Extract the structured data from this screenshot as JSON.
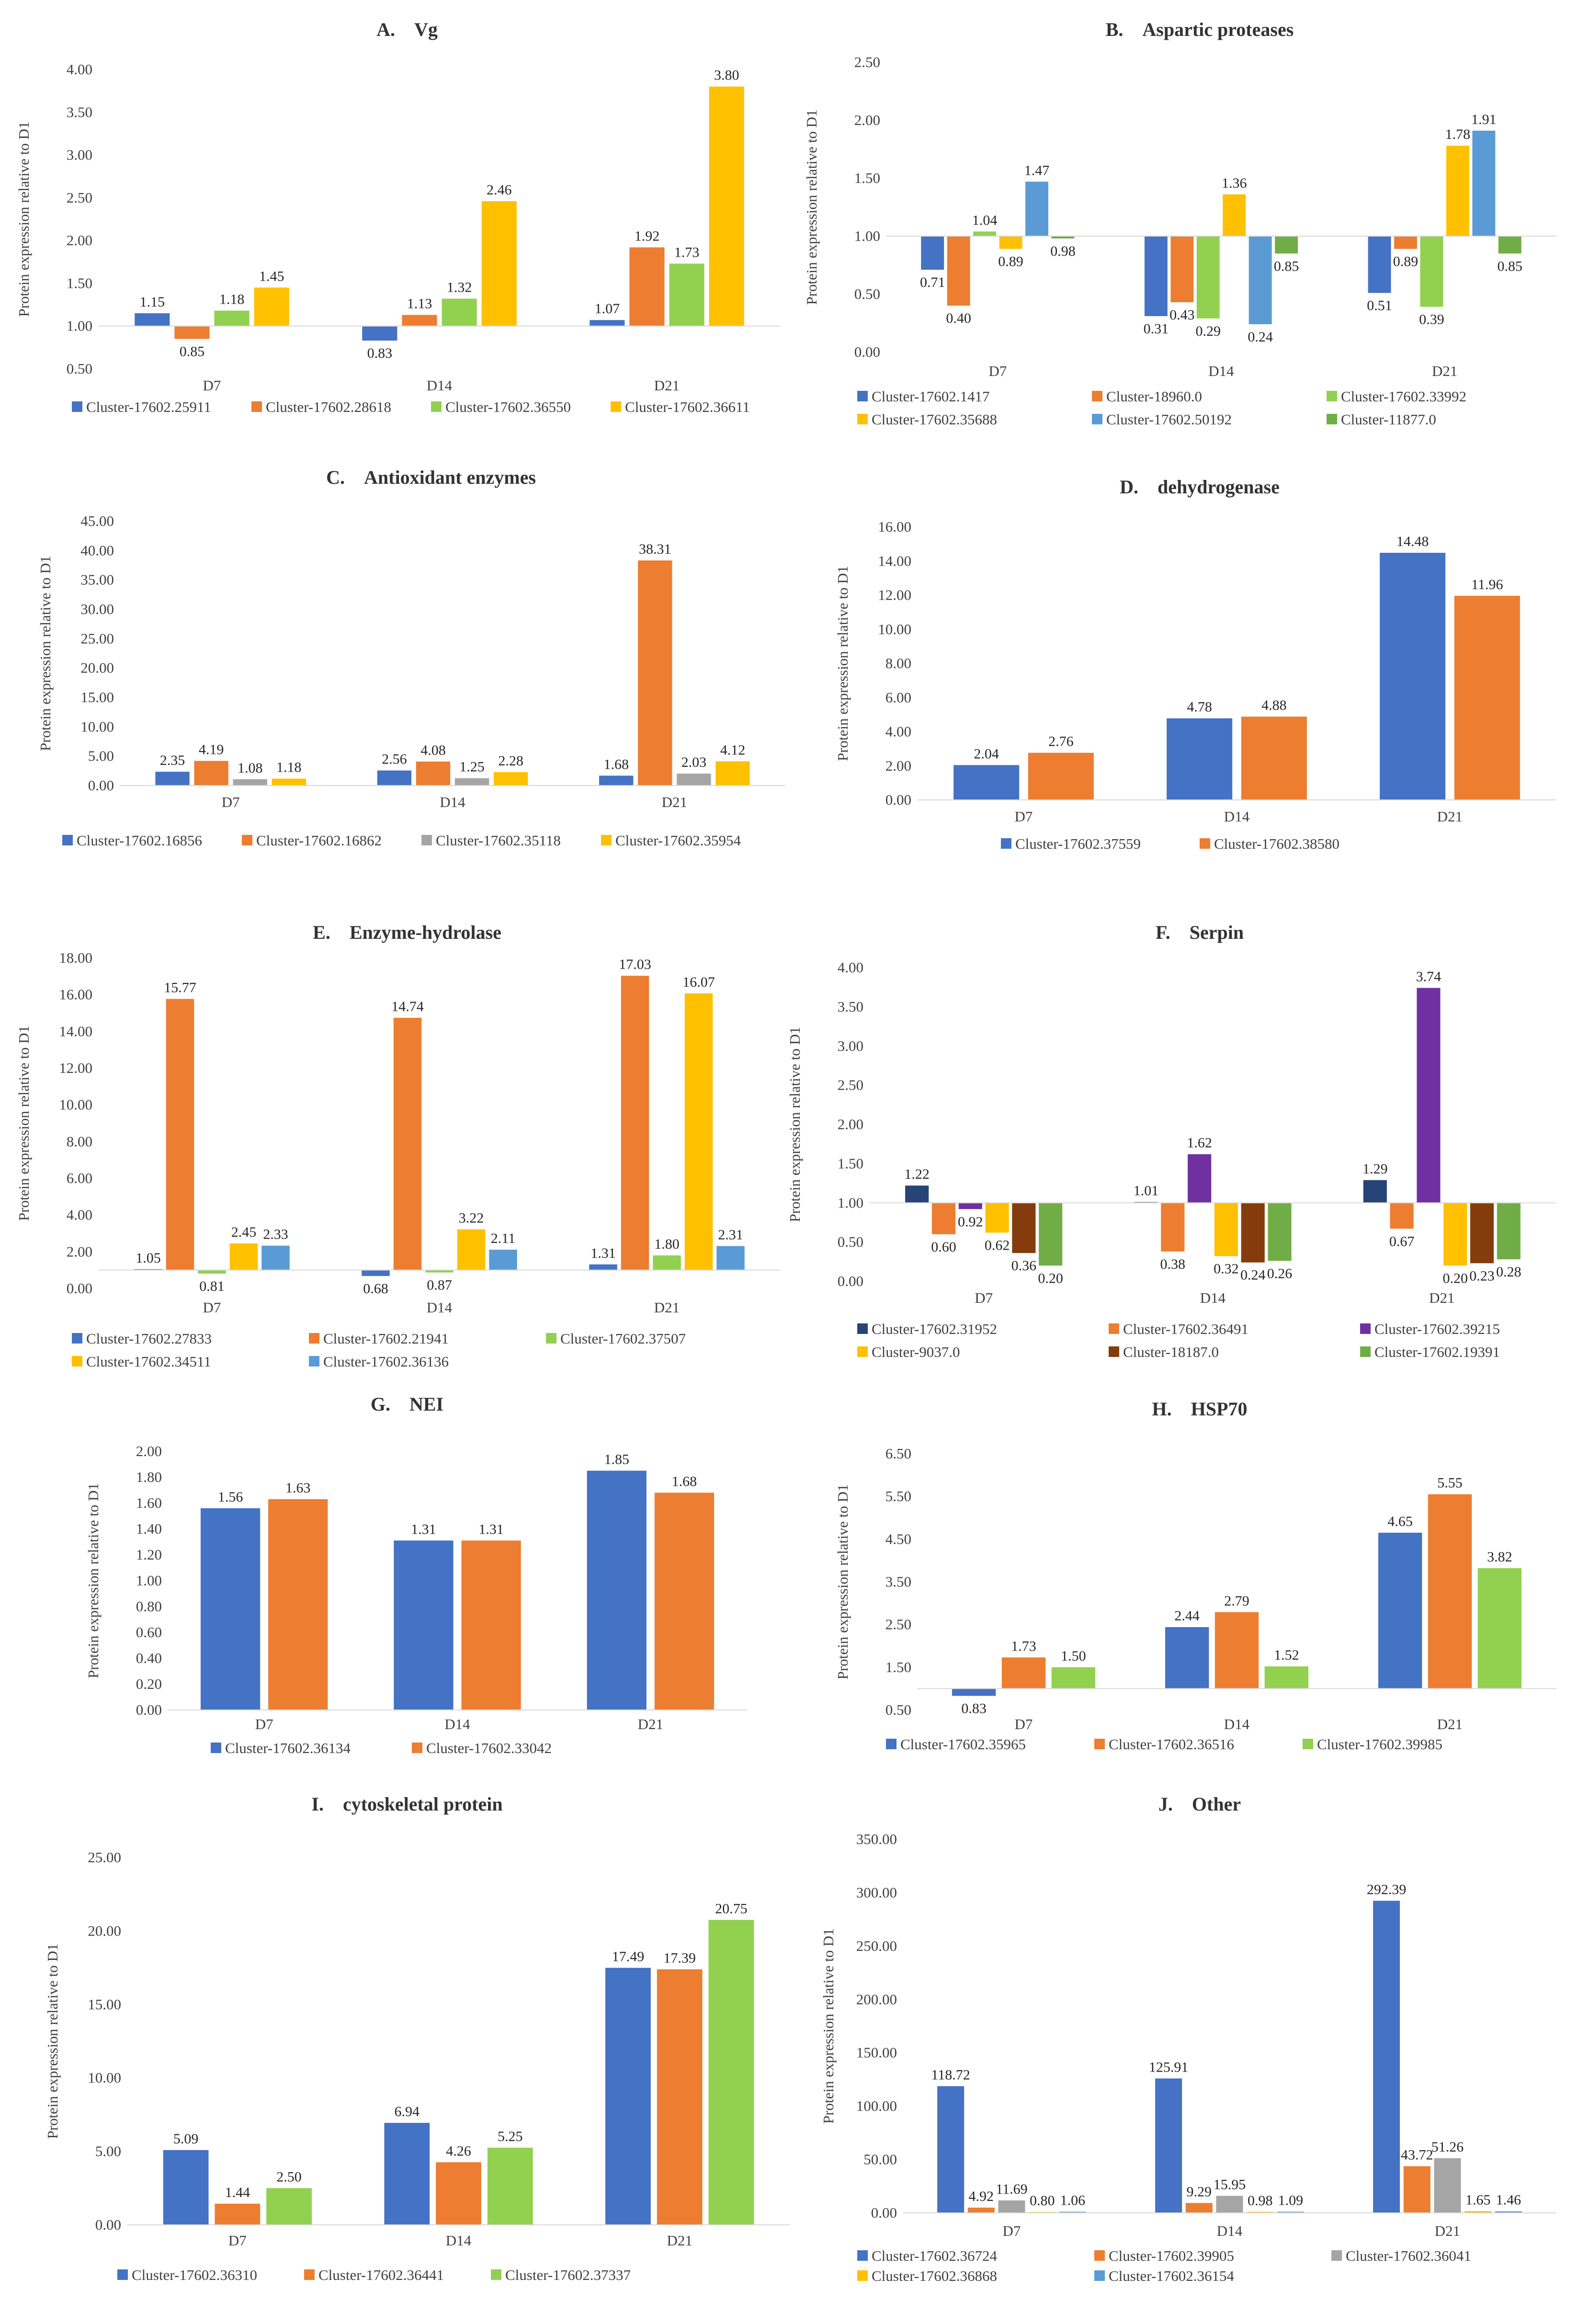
{
  "figure_type": "multi-panel bar chart",
  "chart_data": [
    {
      "id": "A",
      "type": "bar",
      "title_letter": "A.",
      "title": "Vg",
      "ylabel": "Protein expression relative to D1",
      "xlabel": "",
      "ylim": [
        0.5,
        4.0
      ],
      "baseline": 1.0,
      "y_ticks": [
        "0.50",
        "1.00",
        "1.50",
        "2.00",
        "2.50",
        "3.00",
        "3.50",
        "4.00"
      ],
      "categories": [
        "D7",
        "D14",
        "D21"
      ],
      "series": [
        {
          "name": "Cluster-17602.25911",
          "color": "#4472C4",
          "values": [
            1.15,
            0.83,
            1.07
          ]
        },
        {
          "name": "Cluster-17602.28618",
          "color": "#ED7D31",
          "values": [
            0.85,
            1.13,
            1.92
          ]
        },
        {
          "name": "Cluster-17602.36550",
          "color": "#92D050",
          "values": [
            1.18,
            1.32,
            1.73
          ]
        },
        {
          "name": "Cluster-17602.36611",
          "color": "#FFC000",
          "values": [
            1.45,
            2.46,
            3.8
          ]
        }
      ],
      "legend": "bottom"
    },
    {
      "id": "B",
      "type": "bar",
      "title_letter": "B.",
      "title": "Aspartic proteases",
      "ylabel": "Protein expression relative to D1",
      "xlabel": "",
      "ylim": [
        0.0,
        2.5
      ],
      "baseline": 1.0,
      "y_ticks": [
        "0.00",
        "0.50",
        "1.00",
        "1.50",
        "2.00",
        "2.50"
      ],
      "categories": [
        "D7",
        "D14",
        "D21"
      ],
      "series": [
        {
          "name": "Cluster-17602.1417",
          "color": "#4472C4",
          "values": [
            0.71,
            0.31,
            0.51
          ]
        },
        {
          "name": "Cluster-18960.0",
          "color": "#ED7D31",
          "values": [
            0.4,
            0.43,
            0.89
          ]
        },
        {
          "name": "Cluster-17602.33992",
          "color": "#92D050",
          "values": [
            1.04,
            0.29,
            0.39
          ]
        },
        {
          "name": "Cluster-17602.35688",
          "color": "#FFC000",
          "values": [
            0.89,
            1.36,
            1.78
          ]
        },
        {
          "name": "Cluster-17602.50192",
          "color": "#5B9BD5",
          "values": [
            1.47,
            0.24,
            1.91
          ]
        },
        {
          "name": "Cluster-11877.0",
          "color": "#70AD47",
          "values": [
            0.98,
            0.85,
            0.85
          ]
        }
      ],
      "legend": "bottom"
    },
    {
      "id": "C",
      "type": "bar",
      "title_letter": "C.",
      "title": "Antioxidant enzymes",
      "ylabel": "Protein expression relative to D1",
      "xlabel": "",
      "ylim": [
        0.0,
        45.0
      ],
      "baseline": 0.0,
      "y_ticks": [
        "0.00",
        "5.00",
        "10.00",
        "15.00",
        "20.00",
        "25.00",
        "30.00",
        "35.00",
        "40.00",
        "45.00"
      ],
      "categories": [
        "D7",
        "D14",
        "D21"
      ],
      "series": [
        {
          "name": "Cluster-17602.16856",
          "color": "#4472C4",
          "values": [
            2.35,
            2.56,
            1.68
          ]
        },
        {
          "name": "Cluster-17602.16862",
          "color": "#ED7D31",
          "values": [
            4.19,
            4.08,
            38.31
          ]
        },
        {
          "name": "Cluster-17602.35118",
          "color": "#A5A5A5",
          "values": [
            1.08,
            1.25,
            2.03
          ]
        },
        {
          "name": "Cluster-17602.35954",
          "color": "#FFC000",
          "values": [
            1.18,
            2.28,
            4.12
          ]
        }
      ],
      "legend": "bottom"
    },
    {
      "id": "D",
      "type": "bar",
      "title_letter": "D.",
      "title": "dehydrogenase",
      "ylabel": "Protein expression relative to D1",
      "xlabel": "",
      "ylim": [
        0.0,
        16.0
      ],
      "baseline": 0.0,
      "y_ticks": [
        "0.00",
        "2.00",
        "4.00",
        "6.00",
        "8.00",
        "10.00",
        "12.00",
        "14.00",
        "16.00"
      ],
      "categories": [
        "D7",
        "D14",
        "D21"
      ],
      "series": [
        {
          "name": "Cluster-17602.37559",
          "color": "#4472C4",
          "values": [
            2.04,
            4.78,
            14.48
          ]
        },
        {
          "name": "Cluster-17602.38580",
          "color": "#ED7D31",
          "values": [
            2.76,
            4.88,
            11.96
          ]
        }
      ],
      "legend": "bottom"
    },
    {
      "id": "E",
      "type": "bar",
      "title_letter": "E.",
      "title": "Enzyme-hydrolase",
      "ylabel": "Protein expression relative to D1",
      "xlabel": "",
      "ylim": [
        0.0,
        18.0
      ],
      "baseline": 1.0,
      "y_ticks": [
        "0.00",
        "2.00",
        "4.00",
        "6.00",
        "8.00",
        "10.00",
        "12.00",
        "14.00",
        "16.00",
        "18.00"
      ],
      "categories": [
        "D7",
        "D14",
        "D21"
      ],
      "series": [
        {
          "name": "Cluster-17602.27833",
          "color": "#4472C4",
          "values": [
            1.05,
            0.68,
            1.31
          ]
        },
        {
          "name": "Cluster-17602.21941",
          "color": "#ED7D31",
          "values": [
            15.77,
            14.74,
            17.03
          ]
        },
        {
          "name": "Cluster-17602.37507",
          "color": "#92D050",
          "values": [
            0.81,
            0.87,
            1.8
          ]
        },
        {
          "name": "Cluster-17602.34511",
          "color": "#FFC000",
          "values": [
            2.45,
            3.22,
            16.07
          ]
        },
        {
          "name": "Cluster-17602.36136",
          "color": "#5B9BD5",
          "values": [
            2.33,
            2.11,
            2.31
          ]
        }
      ],
      "legend": "bottom"
    },
    {
      "id": "F",
      "type": "bar",
      "title_letter": "F.",
      "title": "Serpin",
      "ylabel": "Protein expression relative to D1",
      "xlabel": "",
      "ylim": [
        0.0,
        4.0
      ],
      "baseline": 1.0,
      "y_ticks": [
        "0.00",
        "0.50",
        "1.00",
        "1.50",
        "2.00",
        "2.50",
        "3.00",
        "3.50",
        "4.00"
      ],
      "categories": [
        "D7",
        "D14",
        "D21"
      ],
      "series": [
        {
          "name": "Cluster-17602.31952",
          "color": "#264478",
          "values": [
            1.22,
            1.01,
            1.29
          ]
        },
        {
          "name": "Cluster-17602.36491",
          "color": "#ED7D31",
          "values": [
            0.6,
            0.38,
            0.67
          ]
        },
        {
          "name": "Cluster-17602.39215",
          "color": "#7030A0",
          "values": [
            0.92,
            1.62,
            3.74
          ]
        },
        {
          "name": "Cluster-9037.0",
          "color": "#FFC000",
          "values": [
            0.62,
            0.32,
            0.2
          ]
        },
        {
          "name": "Cluster-18187.0",
          "color": "#843C0C",
          "values": [
            0.36,
            0.24,
            0.23
          ]
        },
        {
          "name": "Cluster-17602.19391",
          "color": "#70AD47",
          "values": [
            0.2,
            0.26,
            0.28
          ]
        }
      ],
      "legend": "bottom"
    },
    {
      "id": "G",
      "type": "bar",
      "title_letter": "G.",
      "title": "NEI",
      "ylabel": "Protein expression relative to D1",
      "xlabel": "",
      "ylim": [
        0.0,
        2.0
      ],
      "baseline": 0.0,
      "y_ticks": [
        "0.00",
        "0.20",
        "0.40",
        "0.60",
        "0.80",
        "1.00",
        "1.20",
        "1.40",
        "1.60",
        "1.80",
        "2.00"
      ],
      "categories": [
        "D7",
        "D14",
        "D21"
      ],
      "series": [
        {
          "name": "Cluster-17602.36134",
          "color": "#4472C4",
          "values": [
            1.56,
            1.31,
            1.85
          ]
        },
        {
          "name": "Cluster-17602.33042",
          "color": "#ED7D31",
          "values": [
            1.63,
            1.31,
            1.68
          ]
        }
      ],
      "legend": "bottom"
    },
    {
      "id": "H",
      "type": "bar",
      "title_letter": "H.",
      "title": "HSP70",
      "ylabel": "Protein expression relative to D1",
      "xlabel": "",
      "ylim": [
        0.5,
        6.5
      ],
      "baseline": 1.0,
      "y_ticks": [
        "0.50",
        "1.50",
        "2.50",
        "3.50",
        "4.50",
        "5.50",
        "6.50"
      ],
      "categories": [
        "D7",
        "D14",
        "D21"
      ],
      "series": [
        {
          "name": "Cluster-17602.35965",
          "color": "#4472C4",
          "values": [
            0.83,
            2.44,
            4.65
          ]
        },
        {
          "name": "Cluster-17602.36516",
          "color": "#ED7D31",
          "values": [
            1.73,
            2.79,
            5.55
          ]
        },
        {
          "name": "Cluster-17602.39985",
          "color": "#92D050",
          "values": [
            1.5,
            1.52,
            3.82
          ]
        }
      ],
      "legend": "bottom"
    },
    {
      "id": "I",
      "type": "bar",
      "title_letter": "I.",
      "title": "cytoskeletal protein",
      "ylabel": "Protein expression relative to D1",
      "xlabel": "",
      "ylim": [
        0.0,
        25.0
      ],
      "baseline": 0.0,
      "y_ticks": [
        "0.00",
        "5.00",
        "10.00",
        "15.00",
        "20.00",
        "25.00"
      ],
      "categories": [
        "D7",
        "D14",
        "D21"
      ],
      "series": [
        {
          "name": "Cluster-17602.36310",
          "color": "#4472C4",
          "values": [
            5.09,
            6.94,
            17.49
          ]
        },
        {
          "name": "Cluster-17602.36441",
          "color": "#ED7D31",
          "values": [
            1.44,
            4.26,
            17.39
          ]
        },
        {
          "name": "Cluster-17602.37337",
          "color": "#92D050",
          "values": [
            2.5,
            5.25,
            20.75
          ]
        }
      ],
      "legend": "bottom"
    },
    {
      "id": "J",
      "type": "bar",
      "title_letter": "J.",
      "title": "Other",
      "ylabel": "Protein expression relative to D1",
      "xlabel": "",
      "ylim": [
        0.0,
        350.0
      ],
      "baseline": 0.0,
      "y_ticks": [
        "0.00",
        "50.00",
        "100.00",
        "150.00",
        "200.00",
        "250.00",
        "300.00",
        "350.00"
      ],
      "categories": [
        "D7",
        "D14",
        "D21"
      ],
      "series": [
        {
          "name": "Cluster-17602.36724",
          "color": "#4472C4",
          "values": [
            118.72,
            125.91,
            292.39
          ]
        },
        {
          "name": "Cluster-17602.39905",
          "color": "#ED7D31",
          "values": [
            4.92,
            9.29,
            43.72
          ]
        },
        {
          "name": "Cluster-17602.36041",
          "color": "#A5A5A5",
          "values": [
            11.69,
            15.95,
            51.26
          ]
        },
        {
          "name": "Cluster-17602.36868",
          "color": "#FFC000",
          "values": [
            0.8,
            0.98,
            1.65
          ]
        },
        {
          "name": "Cluster-17602.36154",
          "color": "#5B9BD5",
          "values": [
            1.06,
            1.09,
            1.46
          ]
        }
      ],
      "legend": "bottom"
    }
  ]
}
